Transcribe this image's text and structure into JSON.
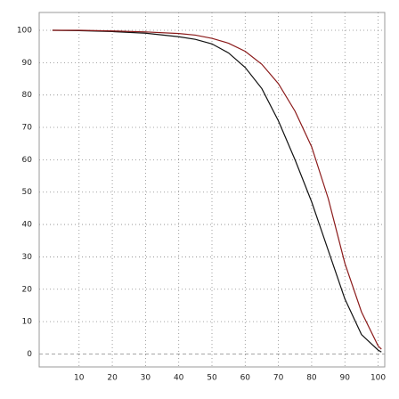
{
  "chart_data": {
    "type": "line",
    "x": [
      2,
      10,
      20,
      30,
      40,
      45,
      50,
      55,
      60,
      65,
      70,
      75,
      80,
      85,
      90,
      95,
      100,
      101
    ],
    "series": [
      {
        "color": "#111111",
        "values": [
          100,
          99.9,
          99.6,
          99.1,
          98,
          97.2,
          95.8,
          93,
          88.5,
          82,
          72,
          60,
          47,
          32,
          17,
          6,
          1.2,
          0.6
        ]
      },
      {
        "color": "#8b1a1a",
        "values": [
          100,
          100,
          99.8,
          99.5,
          99,
          98.5,
          97.5,
          96,
          93.5,
          89.5,
          83.5,
          75,
          64,
          48,
          28,
          13,
          2.5,
          1.5
        ]
      }
    ],
    "xlim": [
      -2,
      102
    ],
    "xticks": [
      10,
      20,
      30,
      40,
      50,
      60,
      70,
      80,
      90,
      100
    ],
    "ylim": [
      -4,
      105.5
    ],
    "yticks": [
      0,
      10,
      20,
      30,
      40,
      50,
      60,
      70,
      80,
      90,
      100
    ],
    "grid": true
  }
}
